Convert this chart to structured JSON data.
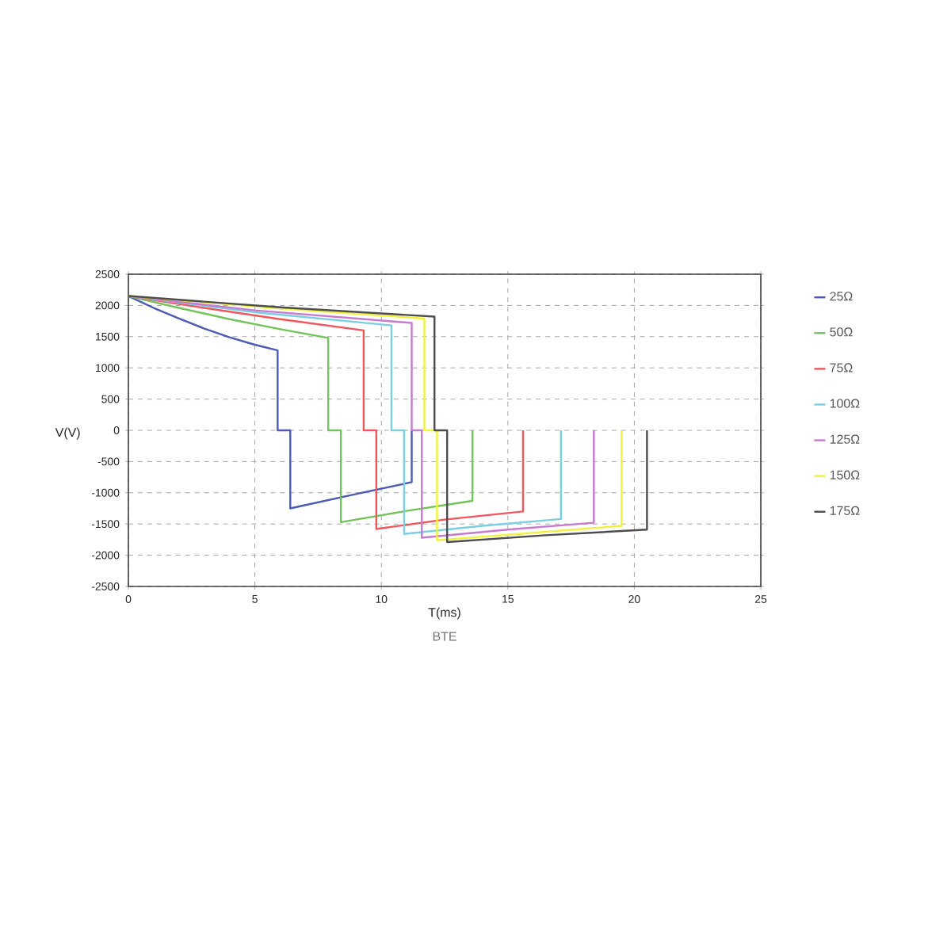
{
  "chart_data": {
    "type": "line",
    "title": "BTE",
    "xlabel": "T(ms)",
    "ylabel": "V(V)",
    "xlim": [
      0,
      25
    ],
    "xticks": [
      0,
      5,
      10,
      15,
      20,
      25
    ],
    "ylim": [
      -2500,
      2500
    ],
    "yticks": [
      -2500,
      -2000,
      -1500,
      -1000,
      -500,
      0,
      500,
      1000,
      1500,
      2000,
      2500
    ],
    "grid": true,
    "legend": "right",
    "marker": "none",
    "line_style": "solid",
    "series": [
      {
        "name": "25Ω",
        "color": "#4b5bb5",
        "x": [
          0,
          1,
          2,
          3,
          4,
          5,
          5.9,
          5.9,
          6.4,
          6.4,
          9,
          11.2,
          11.2
        ],
        "values": [
          2150,
          1960,
          1790,
          1630,
          1490,
          1370,
          1280,
          0,
          0,
          -1250,
          -1020,
          -830,
          0
        ]
      },
      {
        "name": "50Ω",
        "color": "#72c35a",
        "x": [
          0,
          2,
          4,
          6,
          7.9,
          7.9,
          8.4,
          8.4,
          11,
          13.6,
          13.6
        ],
        "values": [
          2150,
          1960,
          1780,
          1620,
          1480,
          0,
          0,
          -1470,
          -1290,
          -1130,
          0
        ]
      },
      {
        "name": "75Ω",
        "color": "#f0565c",
        "x": [
          0,
          3,
          6,
          9.3,
          9.3,
          9.8,
          9.8,
          12.5,
          15.6,
          15.6
        ],
        "values": [
          2150,
          1960,
          1780,
          1600,
          0,
          0,
          -1580,
          -1430,
          -1300,
          0
        ]
      },
      {
        "name": "100Ω",
        "color": "#7acfe0",
        "x": [
          0,
          5,
          10.4,
          10.4,
          10.9,
          10.9,
          14,
          17.1,
          17.1
        ],
        "values": [
          2150,
          1890,
          1680,
          0,
          0,
          -1660,
          -1530,
          -1420,
          0
        ]
      },
      {
        "name": "125Ω",
        "color": "#c77ad0",
        "x": [
          0,
          5,
          11.2,
          11.2,
          11.6,
          11.6,
          15,
          18.4,
          18.4
        ],
        "values": [
          2150,
          1920,
          1720,
          0,
          0,
          -1720,
          -1590,
          -1480,
          0
        ]
      },
      {
        "name": "150Ω",
        "color": "#f2f23c",
        "x": [
          0,
          6,
          11.7,
          11.7,
          12.2,
          12.2,
          16,
          19.5,
          19.5
        ],
        "values": [
          2150,
          1950,
          1790,
          0,
          0,
          -1760,
          -1640,
          -1530,
          0
        ]
      },
      {
        "name": "175Ω",
        "color": "#4d4d4d",
        "x": [
          0,
          6,
          12.1,
          12.1,
          12.6,
          12.6,
          16.5,
          20.5,
          20.5
        ],
        "values": [
          2150,
          1970,
          1820,
          0,
          0,
          -1790,
          -1680,
          -1590,
          0
        ]
      }
    ]
  }
}
